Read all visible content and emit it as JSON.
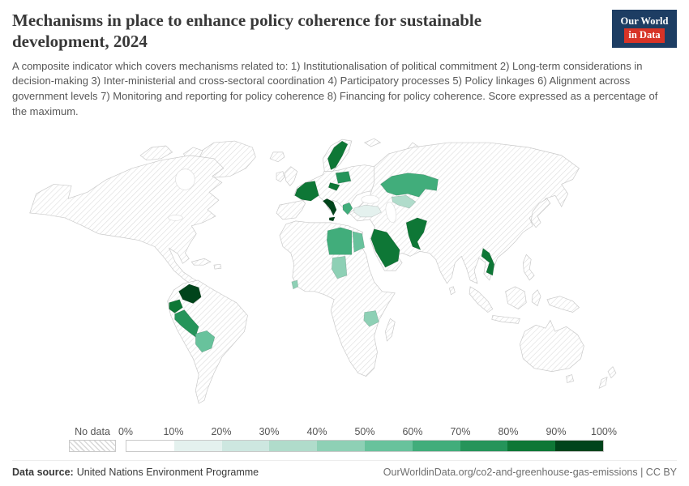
{
  "header": {
    "title": "Mechanisms in place to enhance policy coherence for sustainable development, 2024",
    "subtitle": "A composite indicator which covers mechanisms related to: 1) Institutionalisation of political commitment 2) Long-term considerations in decision-making 3) Inter-ministerial and cross-sectoral coordination 4) Participatory processes 5) Policy linkages 6) Alignment across government levels 7) Monitoring and reporting for policy coherence 8) Financing for policy coherence. Score expressed as a percentage of the maximum.",
    "logo": {
      "line1": "Our World",
      "line2": "in Data",
      "bg_color": "#1d3d63",
      "accent_color": "#d73327"
    }
  },
  "legend": {
    "no_data_label": "No data",
    "tick_labels": [
      "0%",
      "10%",
      "20%",
      "30%",
      "40%",
      "50%",
      "60%",
      "70%",
      "80%",
      "90%",
      "100%"
    ],
    "bin_colors": [
      "#ffffff",
      "#e4f1ee",
      "#cde7e0",
      "#b0dccb",
      "#8ed0b5",
      "#68c29c",
      "#41ad7b",
      "#25945a",
      "#0e7736",
      "#00441b"
    ],
    "hatch_color": "#d9d9d9"
  },
  "footer": {
    "source_label": "Data source:",
    "source_value": "United Nations Environment Programme",
    "link_text": "OurWorldinData.org/co2-and-greenhouse-gas-emissions | CC BY"
  },
  "chart_data": {
    "type": "choropleth-map",
    "title": "Mechanisms in place to enhance policy coherence for sustainable development, 2024",
    "unit": "% of maximum score",
    "value_range": [
      0,
      100
    ],
    "no_data_style": "hatched",
    "legend_position": "bottom",
    "countries": [
      {
        "name": "Colombia",
        "value": 90
      },
      {
        "name": "Ecuador",
        "value": 85
      },
      {
        "name": "Peru",
        "value": 70
      },
      {
        "name": "Bolivia",
        "value": 55
      },
      {
        "name": "Sierra Leone",
        "value": 40
      },
      {
        "name": "France",
        "value": 85
      },
      {
        "name": "Italy",
        "value": 90
      },
      {
        "name": "Sweden",
        "value": 80
      },
      {
        "name": "Poland",
        "value": 70
      },
      {
        "name": "Czechia",
        "value": 80
      },
      {
        "name": "Greece",
        "value": 60
      },
      {
        "name": "Turkey",
        "value": 15
      },
      {
        "name": "Libya",
        "value": 60
      },
      {
        "name": "Egypt",
        "value": 55
      },
      {
        "name": "Chad",
        "value": 45
      },
      {
        "name": "Tanzania",
        "value": 45
      },
      {
        "name": "Saudi Arabia",
        "value": 80
      },
      {
        "name": "Kazakhstan",
        "value": 65
      },
      {
        "name": "Uzbekistan",
        "value": 30
      },
      {
        "name": "Pakistan",
        "value": 85
      },
      {
        "name": "Vietnam",
        "value": 85
      }
    ]
  }
}
